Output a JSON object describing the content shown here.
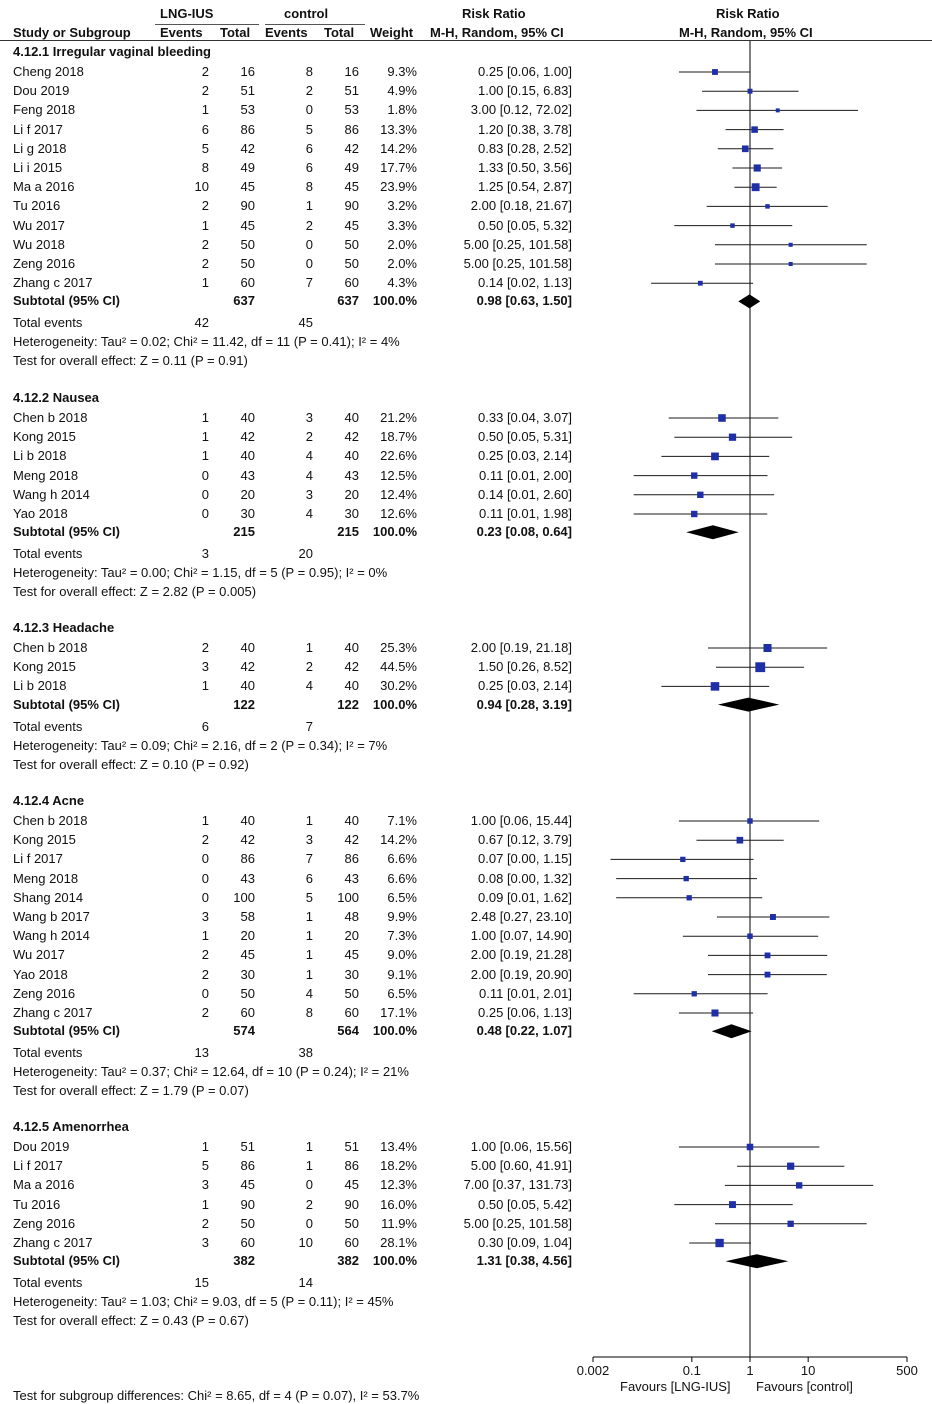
{
  "header": {
    "group1": "LNG-IUS",
    "group2": "control",
    "rr_title_left": "Risk Ratio",
    "rr_title_right": "Risk Ratio",
    "col_study": "Study or Subgroup",
    "col_events1": "Events",
    "col_total1": "Total",
    "col_events2": "Events",
    "col_total2": "Total",
    "col_weight": "Weight",
    "col_method_left": "M-H, Random, 95% CI",
    "col_method_right": "M-H, Random, 95% CI"
  },
  "footer": {
    "test_subgroup": "Test for subgroup differences: Chi² = 8.65, df = 4 (P = 0.07), I² = 53.7%",
    "favours_left": "Favours [LNG-IUS]",
    "favours_right": "Favours [control]"
  },
  "chart_data": {
    "type": "forest",
    "scale": "log",
    "xlim": [
      0.002,
      500
    ],
    "ticks": [
      {
        "value": 0.002,
        "label": "0.002"
      },
      {
        "value": 0.1,
        "label": "0.1"
      },
      {
        "value": 1,
        "label": "1"
      },
      {
        "value": 10,
        "label": "10"
      },
      {
        "value": 500,
        "label": "500"
      }
    ],
    "groups": [
      {
        "title": "4.12.1 Irregular vaginal bleeding",
        "studies": [
          {
            "name": "Cheng  2018",
            "e1": "2",
            "t1": "16",
            "e2": "8",
            "t2": "16",
            "weight": "9.3%",
            "ci": "0.25 [0.06, 1.00]",
            "rr": 0.25,
            "lo": 0.06,
            "hi": 1.0
          },
          {
            "name": "Dou 2019",
            "e1": "2",
            "t1": "51",
            "e2": "2",
            "t2": "51",
            "weight": "4.9%",
            "ci": "1.00 [0.15, 6.83]",
            "rr": 1.0,
            "lo": 0.15,
            "hi": 6.83
          },
          {
            "name": "Feng 2018",
            "e1": "1",
            "t1": "53",
            "e2": "0",
            "t2": "53",
            "weight": "1.8%",
            "ci": "3.00 [0.12, 72.02]",
            "rr": 3.0,
            "lo": 0.12,
            "hi": 72.02
          },
          {
            "name": "Li f 2017",
            "e1": "6",
            "t1": "86",
            "e2": "5",
            "t2": "86",
            "weight": "13.3%",
            "ci": "1.20 [0.38, 3.78]",
            "rr": 1.2,
            "lo": 0.38,
            "hi": 3.78
          },
          {
            "name": "Li g 2018",
            "e1": "5",
            "t1": "42",
            "e2": "6",
            "t2": "42",
            "weight": "14.2%",
            "ci": "0.83 [0.28, 2.52]",
            "rr": 0.83,
            "lo": 0.28,
            "hi": 2.52
          },
          {
            "name": "Li i 2015",
            "e1": "8",
            "t1": "49",
            "e2": "6",
            "t2": "49",
            "weight": "17.7%",
            "ci": "1.33 [0.50, 3.56]",
            "rr": 1.33,
            "lo": 0.5,
            "hi": 3.56
          },
          {
            "name": "Ma a 2016",
            "e1": "10",
            "t1": "45",
            "e2": "8",
            "t2": "45",
            "weight": "23.9%",
            "ci": "1.25 [0.54, 2.87]",
            "rr": 1.25,
            "lo": 0.54,
            "hi": 2.87
          },
          {
            "name": "Tu 2016",
            "e1": "2",
            "t1": "90",
            "e2": "1",
            "t2": "90",
            "weight": "3.2%",
            "ci": "2.00 [0.18, 21.67]",
            "rr": 2.0,
            "lo": 0.18,
            "hi": 21.67
          },
          {
            "name": "Wu 2017",
            "e1": "1",
            "t1": "45",
            "e2": "2",
            "t2": "45",
            "weight": "3.3%",
            "ci": "0.50 [0.05, 5.32]",
            "rr": 0.5,
            "lo": 0.05,
            "hi": 5.32
          },
          {
            "name": "Wu 2018",
            "e1": "2",
            "t1": "50",
            "e2": "0",
            "t2": "50",
            "weight": "2.0%",
            "ci": "5.00 [0.25, 101.58]",
            "rr": 5.0,
            "lo": 0.25,
            "hi": 101.58
          },
          {
            "name": "Zeng 2016",
            "e1": "2",
            "t1": "50",
            "e2": "0",
            "t2": "50",
            "weight": "2.0%",
            "ci": "5.00 [0.25, 101.58]",
            "rr": 5.0,
            "lo": 0.25,
            "hi": 101.58
          },
          {
            "name": "Zhang c  2017",
            "e1": "1",
            "t1": "60",
            "e2": "7",
            "t2": "60",
            "weight": "4.3%",
            "ci": "0.14 [0.02, 1.13]",
            "rr": 0.14,
            "lo": 0.02,
            "hi": 1.13
          }
        ],
        "subtotal": {
          "label": "Subtotal (95% CI)",
          "t1": "637",
          "t2": "637",
          "weight": "100.0%",
          "ci": "0.98 [0.63, 1.50]",
          "rr": 0.98,
          "lo": 0.63,
          "hi": 1.5
        },
        "total_events": {
          "label": "Total events",
          "e1": "42",
          "e2": "45"
        },
        "heterogeneity": "Heterogeneity: Tau² = 0.02; Chi² = 11.42, df = 11 (P = 0.41); I² = 4%",
        "overall": "Test for overall effect: Z = 0.11 (P = 0.91)"
      },
      {
        "title": "4.12.2 Nausea",
        "studies": [
          {
            "name": "Chen b  2018",
            "e1": "1",
            "t1": "40",
            "e2": "3",
            "t2": "40",
            "weight": "21.2%",
            "ci": "0.33 [0.04, 3.07]",
            "rr": 0.33,
            "lo": 0.04,
            "hi": 3.07
          },
          {
            "name": "Kong 2015",
            "e1": "1",
            "t1": "42",
            "e2": "2",
            "t2": "42",
            "weight": "18.7%",
            "ci": "0.50 [0.05, 5.31]",
            "rr": 0.5,
            "lo": 0.05,
            "hi": 5.31
          },
          {
            "name": "Li b 2018",
            "e1": "1",
            "t1": "40",
            "e2": "4",
            "t2": "40",
            "weight": "22.6%",
            "ci": "0.25 [0.03, 2.14]",
            "rr": 0.25,
            "lo": 0.03,
            "hi": 2.14
          },
          {
            "name": "Meng 2018",
            "e1": "0",
            "t1": "43",
            "e2": "4",
            "t2": "43",
            "weight": "12.5%",
            "ci": "0.11 [0.01, 2.00]",
            "rr": 0.11,
            "lo": 0.01,
            "hi": 2.0
          },
          {
            "name": "Wang h 2014",
            "e1": "0",
            "t1": "20",
            "e2": "3",
            "t2": "20",
            "weight": "12.4%",
            "ci": "0.14 [0.01, 2.60]",
            "rr": 0.14,
            "lo": 0.01,
            "hi": 2.6
          },
          {
            "name": "Yao 2018",
            "e1": "0",
            "t1": "30",
            "e2": "4",
            "t2": "30",
            "weight": "12.6%",
            "ci": "0.11 [0.01, 1.98]",
            "rr": 0.11,
            "lo": 0.01,
            "hi": 1.98
          }
        ],
        "subtotal": {
          "label": "Subtotal (95% CI)",
          "t1": "215",
          "t2": "215",
          "weight": "100.0%",
          "ci": "0.23 [0.08, 0.64]",
          "rr": 0.23,
          "lo": 0.08,
          "hi": 0.64
        },
        "total_events": {
          "label": "Total events",
          "e1": "3",
          "e2": "20"
        },
        "heterogeneity": "Heterogeneity: Tau² = 0.00; Chi² = 1.15, df = 5 (P = 0.95); I² = 0%",
        "overall": "Test for overall effect: Z = 2.82 (P = 0.005)"
      },
      {
        "title": "4.12.3 Headache",
        "studies": [
          {
            "name": "Chen b  2018",
            "e1": "2",
            "t1": "40",
            "e2": "1",
            "t2": "40",
            "weight": "25.3%",
            "ci": "2.00 [0.19, 21.18]",
            "rr": 2.0,
            "lo": 0.19,
            "hi": 21.18
          },
          {
            "name": "Kong 2015",
            "e1": "3",
            "t1": "42",
            "e2": "2",
            "t2": "42",
            "weight": "44.5%",
            "ci": "1.50 [0.26, 8.52]",
            "rr": 1.5,
            "lo": 0.26,
            "hi": 8.52
          },
          {
            "name": "Li b 2018",
            "e1": "1",
            "t1": "40",
            "e2": "4",
            "t2": "40",
            "weight": "30.2%",
            "ci": "0.25 [0.03, 2.14]",
            "rr": 0.25,
            "lo": 0.03,
            "hi": 2.14
          }
        ],
        "subtotal": {
          "label": "Subtotal (95% CI)",
          "t1": "122",
          "t2": "122",
          "weight": "100.0%",
          "ci": "0.94 [0.28, 3.19]",
          "rr": 0.94,
          "lo": 0.28,
          "hi": 3.19
        },
        "total_events": {
          "label": "Total events",
          "e1": "6",
          "e2": "7"
        },
        "heterogeneity": "Heterogeneity: Tau² = 0.09; Chi² = 2.16, df = 2 (P = 0.34); I² = 7%",
        "overall": "Test for overall effect: Z = 0.10 (P = 0.92)"
      },
      {
        "title": "4.12.4 Acne",
        "studies": [
          {
            "name": "Chen b  2018",
            "e1": "1",
            "t1": "40",
            "e2": "1",
            "t2": "40",
            "weight": "7.1%",
            "ci": "1.00 [0.06, 15.44]",
            "rr": 1.0,
            "lo": 0.06,
            "hi": 15.44
          },
          {
            "name": "Kong 2015",
            "e1": "2",
            "t1": "42",
            "e2": "3",
            "t2": "42",
            "weight": "14.2%",
            "ci": "0.67 [0.12, 3.79]",
            "rr": 0.67,
            "lo": 0.12,
            "hi": 3.79
          },
          {
            "name": "Li f 2017",
            "e1": "0",
            "t1": "86",
            "e2": "7",
            "t2": "86",
            "weight": "6.6%",
            "ci": "0.07 [0.00, 1.15]",
            "rr": 0.07,
            "lo": 0.004,
            "hi": 1.15
          },
          {
            "name": "Meng 2018",
            "e1": "0",
            "t1": "43",
            "e2": "6",
            "t2": "43",
            "weight": "6.6%",
            "ci": "0.08 [0.00, 1.32]",
            "rr": 0.08,
            "lo": 0.005,
            "hi": 1.32
          },
          {
            "name": "Shang 2014",
            "e1": "0",
            "t1": "100",
            "e2": "5",
            "t2": "100",
            "weight": "6.5%",
            "ci": "0.09 [0.01, 1.62]",
            "rr": 0.09,
            "lo": 0.005,
            "hi": 1.62
          },
          {
            "name": "Wang b 2017",
            "e1": "3",
            "t1": "58",
            "e2": "1",
            "t2": "48",
            "weight": "9.9%",
            "ci": "2.48 [0.27, 23.10]",
            "rr": 2.48,
            "lo": 0.27,
            "hi": 23.1
          },
          {
            "name": "Wang h 2014",
            "e1": "1",
            "t1": "20",
            "e2": "1",
            "t2": "20",
            "weight": "7.3%",
            "ci": "1.00 [0.07, 14.90]",
            "rr": 1.0,
            "lo": 0.07,
            "hi": 14.9
          },
          {
            "name": "Wu 2017",
            "e1": "2",
            "t1": "45",
            "e2": "1",
            "t2": "45",
            "weight": "9.0%",
            "ci": "2.00 [0.19, 21.28]",
            "rr": 2.0,
            "lo": 0.19,
            "hi": 21.28
          },
          {
            "name": "Yao 2018",
            "e1": "2",
            "t1": "30",
            "e2": "1",
            "t2": "30",
            "weight": "9.1%",
            "ci": "2.00 [0.19, 20.90]",
            "rr": 2.0,
            "lo": 0.19,
            "hi": 20.9
          },
          {
            "name": "Zeng 2016",
            "e1": "0",
            "t1": "50",
            "e2": "4",
            "t2": "50",
            "weight": "6.5%",
            "ci": "0.11 [0.01, 2.01]",
            "rr": 0.11,
            "lo": 0.01,
            "hi": 2.01
          },
          {
            "name": "Zhang c  2017",
            "e1": "2",
            "t1": "60",
            "e2": "8",
            "t2": "60",
            "weight": "17.1%",
            "ci": "0.25 [0.06, 1.13]",
            "rr": 0.25,
            "lo": 0.06,
            "hi": 1.13
          }
        ],
        "subtotal": {
          "label": "Subtotal (95% CI)",
          "t1": "574",
          "t2": "564",
          "weight": "100.0%",
          "ci": "0.48 [0.22, 1.07]",
          "rr": 0.48,
          "lo": 0.22,
          "hi": 1.07
        },
        "total_events": {
          "label": "Total events",
          "e1": "13",
          "e2": "38"
        },
        "heterogeneity": "Heterogeneity: Tau² = 0.37; Chi² = 12.64, df = 10 (P = 0.24); I² = 21%",
        "overall": "Test for overall effect: Z = 1.79 (P = 0.07)"
      },
      {
        "title": "4.12.5 Amenorrhea",
        "studies": [
          {
            "name": "Dou 2019",
            "e1": "1",
            "t1": "51",
            "e2": "1",
            "t2": "51",
            "weight": "13.4%",
            "ci": "1.00 [0.06, 15.56]",
            "rr": 1.0,
            "lo": 0.06,
            "hi": 15.56
          },
          {
            "name": "Li f 2017",
            "e1": "5",
            "t1": "86",
            "e2": "1",
            "t2": "86",
            "weight": "18.2%",
            "ci": "5.00 [0.60, 41.91]",
            "rr": 5.0,
            "lo": 0.6,
            "hi": 41.91
          },
          {
            "name": "Ma a 2016",
            "e1": "3",
            "t1": "45",
            "e2": "0",
            "t2": "45",
            "weight": "12.3%",
            "ci": "7.00 [0.37, 131.73]",
            "rr": 7.0,
            "lo": 0.37,
            "hi": 131.73
          },
          {
            "name": "Tu 2016",
            "e1": "1",
            "t1": "90",
            "e2": "2",
            "t2": "90",
            "weight": "16.0%",
            "ci": "0.50 [0.05, 5.42]",
            "rr": 0.5,
            "lo": 0.05,
            "hi": 5.42
          },
          {
            "name": "Zeng 2016",
            "e1": "2",
            "t1": "50",
            "e2": "0",
            "t2": "50",
            "weight": "11.9%",
            "ci": "5.00 [0.25, 101.58]",
            "rr": 5.0,
            "lo": 0.25,
            "hi": 101.58
          },
          {
            "name": "Zhang c  2017",
            "e1": "3",
            "t1": "60",
            "e2": "10",
            "t2": "60",
            "weight": "28.1%",
            "ci": "0.30 [0.09, 1.04]",
            "rr": 0.3,
            "lo": 0.09,
            "hi": 1.04
          }
        ],
        "subtotal": {
          "label": "Subtotal (95% CI)",
          "t1": "382",
          "t2": "382",
          "weight": "100.0%",
          "ci": "1.31 [0.38, 4.56]",
          "rr": 1.31,
          "lo": 0.38,
          "hi": 4.56
        },
        "total_events": {
          "label": "Total events",
          "e1": "15",
          "e2": "14"
        },
        "heterogeneity": "Heterogeneity: Tau² = 1.03; Chi² = 9.03, df = 5 (P = 0.11); I² = 45%",
        "overall": "Test for overall effect: Z = 0.43 (P = 0.67)"
      }
    ]
  }
}
